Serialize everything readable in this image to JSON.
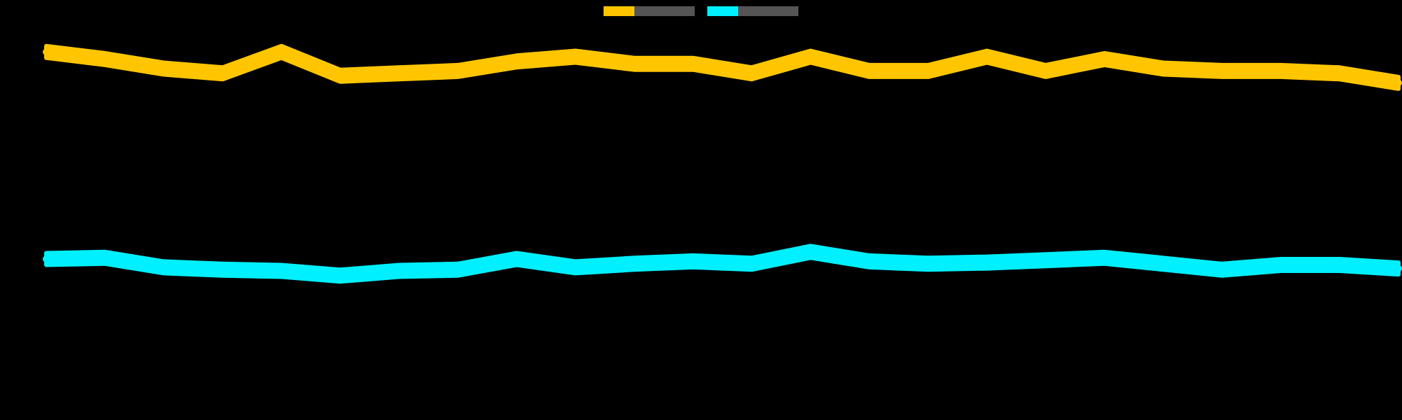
{
  "chart_data": {
    "type": "line",
    "title": "",
    "xlabel": "",
    "ylabel": "",
    "y_axis_labels": [
      "",
      "",
      "",
      "",
      "",
      "",
      "",
      "",
      "",
      "",
      "",
      ""
    ],
    "x_axis_labels": [
      "",
      "",
      "",
      "",
      "",
      "",
      "",
      "",
      "",
      "",
      "",
      "",
      "",
      "",
      "",
      "",
      "",
      "",
      "",
      "",
      "",
      "",
      "",
      ""
    ],
    "ylim": [
      0,
      12
    ],
    "x": [
      1,
      2,
      3,
      4,
      5,
      6,
      7,
      8,
      9,
      10,
      11,
      12,
      13,
      14,
      15,
      16,
      17,
      18,
      19,
      20,
      21,
      22,
      23,
      24
    ],
    "series": [
      {
        "name": "",
        "color": "#FFC600",
        "values": [
          10.7,
          10.4,
          10.0,
          9.8,
          10.7,
          9.7,
          9.8,
          9.9,
          10.3,
          10.5,
          10.2,
          10.2,
          9.8,
          10.5,
          9.9,
          9.9,
          10.5,
          9.9,
          10.4,
          10.0,
          9.9,
          9.9,
          9.8,
          9.4
        ]
      },
      {
        "name": "",
        "color": "#00F0FF",
        "values": [
          2.0,
          2.05,
          1.65,
          1.55,
          1.5,
          1.3,
          1.5,
          1.55,
          2.0,
          1.65,
          1.8,
          1.9,
          1.8,
          2.3,
          1.9,
          1.8,
          1.85,
          1.95,
          2.05,
          1.8,
          1.55,
          1.75,
          1.75,
          1.6
        ]
      }
    ],
    "band_width": 0.5,
    "grid": false,
    "legend": "top-center"
  }
}
